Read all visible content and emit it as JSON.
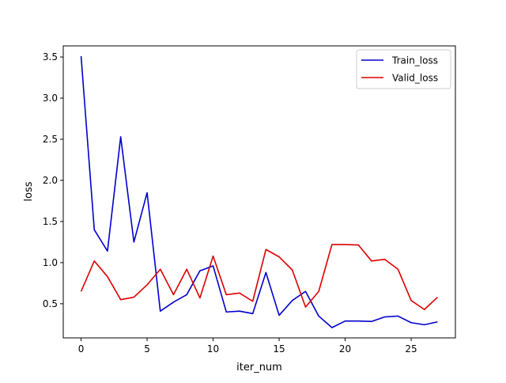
{
  "chart_data": {
    "type": "line",
    "title": "",
    "xlabel": "iter_num",
    "ylabel": "loss",
    "xlim": [
      -1.35,
      28.35
    ],
    "ylim": [
      0.085,
      3.635
    ],
    "xticks": [
      0,
      5,
      10,
      15,
      20,
      25
    ],
    "xtick_labels": [
      "0",
      "5",
      "10",
      "15",
      "20",
      "25"
    ],
    "yticks": [
      0.5,
      1.0,
      1.5,
      2.0,
      2.5,
      3.0,
      3.5
    ],
    "ytick_labels": [
      "0.5",
      "1.0",
      "1.5",
      "2.0",
      "2.5",
      "3.0",
      "3.5"
    ],
    "grid": false,
    "legend_position": "top-right",
    "x": [
      0,
      1,
      2,
      3,
      4,
      5,
      6,
      7,
      8,
      9,
      10,
      11,
      12,
      13,
      14,
      15,
      16,
      17,
      18,
      19,
      20,
      21,
      22,
      23,
      24,
      25,
      26,
      27
    ],
    "series": [
      {
        "name": "Train_loss",
        "color": "#0000cc",
        "values": [
          3.51,
          1.4,
          1.14,
          2.53,
          1.25,
          1.85,
          0.41,
          0.52,
          0.61,
          0.9,
          0.96,
          0.4,
          0.41,
          0.38,
          0.88,
          0.36,
          0.54,
          0.65,
          0.35,
          0.21,
          0.29,
          0.29,
          0.285,
          0.34,
          0.35,
          0.27,
          0.245,
          0.28
        ]
      },
      {
        "name": "Valid_loss",
        "color": "#dd0000",
        "values": [
          0.65,
          1.02,
          0.83,
          0.55,
          0.58,
          0.73,
          0.92,
          0.61,
          0.92,
          0.57,
          1.08,
          0.61,
          0.63,
          0.53,
          1.16,
          1.07,
          0.91,
          0.46,
          0.65,
          1.22,
          1.22,
          1.215,
          1.02,
          1.04,
          0.92,
          0.54,
          0.43,
          0.58
        ]
      }
    ]
  }
}
